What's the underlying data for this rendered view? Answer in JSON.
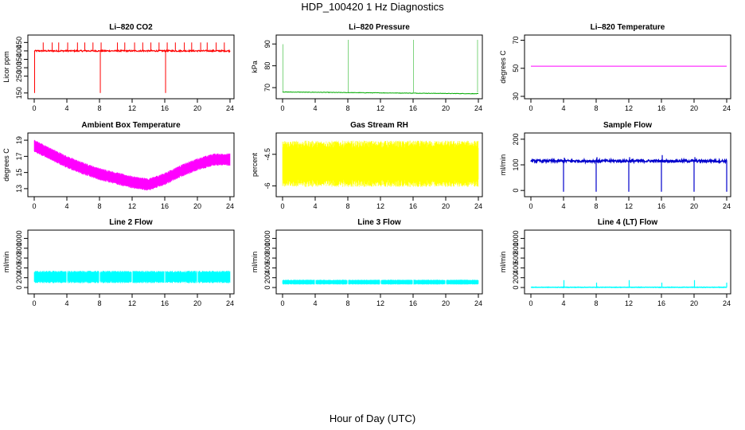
{
  "page": {
    "title": "HDP_100420  1 Hz Diagnostics",
    "xlabel": "Hour of Day (UTC)"
  },
  "chart_data": [
    {
      "type": "line",
      "title": "Li–820 CO2",
      "ylabel": "Licor ppm",
      "xlim": [
        0,
        24
      ],
      "ylim": [
        130,
        480
      ],
      "yticks": [
        150,
        250,
        300,
        350,
        400,
        450
      ],
      "xticks": [
        0,
        4,
        8,
        12,
        16,
        20,
        24
      ],
      "color": "#ff0000",
      "series": [
        {
          "pattern": "co2",
          "base": 400,
          "noise": 4,
          "spikes_up": [
            1.1,
            2.2,
            3,
            4.1,
            5.3,
            6.2,
            7.2,
            8.2,
            10.2,
            11.1,
            12.3,
            13.3,
            14.3,
            15.3,
            16.3,
            17.3,
            18.4,
            19.3,
            20.4,
            21.2,
            22.3,
            23.3
          ],
          "spike_up_to": 450,
          "spikes_down": [
            {
              "x": 0.05,
              "y": 150
            },
            {
              "x": 8.1,
              "y": 150
            },
            {
              "x": 16.1,
              "y": 150
            }
          ]
        }
      ]
    },
    {
      "type": "line",
      "title": "Li–820 Pressure",
      "ylabel": "kPa",
      "xlim": [
        0,
        24
      ],
      "ylim": [
        66,
        93
      ],
      "yticks": [
        70,
        80,
        90
      ],
      "xticks": [
        0,
        4,
        8,
        12,
        16,
        20,
        24
      ],
      "color": "#00aa00",
      "series": [
        {
          "pattern": "pressure",
          "start": 68,
          "end": 67.2,
          "spikes": [
            {
              "x": 0.05,
              "y": 90
            },
            {
              "x": 8.05,
              "y": 92
            },
            {
              "x": 16.05,
              "y": 92
            },
            {
              "x": 23.9,
              "y": 92
            }
          ]
        }
      ]
    },
    {
      "type": "line",
      "title": "Li–820 Temperature",
      "ylabel": "degrees C",
      "xlim": [
        0,
        24
      ],
      "ylim": [
        30,
        72
      ],
      "yticks": [
        30,
        50,
        70
      ],
      "xticks": [
        0,
        4,
        8,
        12,
        16,
        20,
        24
      ],
      "color": "#ff00ff",
      "series": [
        {
          "pattern": "flat",
          "value": 51.5
        }
      ]
    },
    {
      "type": "area",
      "title": "Ambient Box Temperature",
      "ylabel": "degrees C",
      "xlim": [
        0,
        24
      ],
      "ylim": [
        12.3,
        19.6
      ],
      "yticks": [
        13,
        15,
        17,
        19
      ],
      "xticks": [
        0,
        4,
        8,
        12,
        16,
        20,
        24
      ],
      "color": "#ff00ff",
      "series": [
        {
          "pattern": "band",
          "centre": [
            [
              0,
              18.3
            ],
            [
              2,
              17.3
            ],
            [
              4,
              16.3
            ],
            [
              6,
              15.5
            ],
            [
              8,
              14.8
            ],
            [
              10,
              14.3
            ],
            [
              12,
              13.8
            ],
            [
              14,
              13.5
            ],
            [
              16,
              14.2
            ],
            [
              18,
              15.2
            ],
            [
              20,
              16
            ],
            [
              22,
              16.6
            ],
            [
              24,
              16.6
            ]
          ],
          "halfwidth": 0.7
        }
      ]
    },
    {
      "type": "area",
      "title": "Gas Stream RH",
      "ylabel": "percent",
      "xlim": [
        0,
        24
      ],
      "ylim": [
        -6.4,
        -3.6
      ],
      "yticks": [
        -6.0,
        -4.5
      ],
      "xticks": [
        0,
        4,
        8,
        12,
        16,
        20,
        24
      ],
      "color": "#ffff00",
      "series": [
        {
          "pattern": "band",
          "centre": [
            [
              0,
              -4.95
            ],
            [
              24,
              -4.95
            ]
          ],
          "halfwidth": 1.0
        }
      ]
    },
    {
      "type": "line",
      "title": "Sample Flow",
      "ylabel": "ml/min",
      "xlim": [
        0,
        24
      ],
      "ylim": [
        -15,
        215
      ],
      "yticks": [
        0,
        100,
        200
      ],
      "xticks": [
        0,
        4,
        8,
        12,
        16,
        20,
        24
      ],
      "color": "#0000cc",
      "series": [
        {
          "pattern": "flow",
          "base": 115,
          "noise": 5,
          "spikes_up": [
            {
              "x": 4.1,
              "y": 128
            },
            {
              "x": 8.1,
              "y": 130
            },
            {
              "x": 12.1,
              "y": 130
            },
            {
              "x": 16.1,
              "y": 138
            },
            {
              "x": 20.1,
              "y": 130
            }
          ],
          "spikes_down": [
            {
              "x": 4,
              "y": -5
            },
            {
              "x": 8,
              "y": -5
            },
            {
              "x": 12,
              "y": -5
            },
            {
              "x": 16,
              "y": -5
            },
            {
              "x": 20,
              "y": -5
            },
            {
              "x": 24,
              "y": -5
            }
          ]
        }
      ]
    },
    {
      "type": "area",
      "title": "Line 2 Flow",
      "ylabel": "ml/min",
      "xlim": [
        0,
        24
      ],
      "ylim": [
        -80,
        1120
      ],
      "yticks": [
        0,
        200,
        400,
        600,
        800,
        1000
      ],
      "xticks": [
        0,
        4,
        8,
        12,
        16,
        20,
        24
      ],
      "color": "#00ffff",
      "series": [
        {
          "pattern": "band",
          "centre": [
            [
              0,
              215
            ],
            [
              24,
              215
            ]
          ],
          "halfwidth": 115,
          "gaps": [
            4,
            8,
            12,
            16,
            20
          ]
        }
      ]
    },
    {
      "type": "area",
      "title": "Line 3 Flow",
      "ylabel": "ml/min",
      "xlim": [
        0,
        24
      ],
      "ylim": [
        -80,
        1120
      ],
      "yticks": [
        0,
        200,
        400,
        600,
        800,
        1000
      ],
      "xticks": [
        0,
        4,
        8,
        12,
        16,
        20,
        24
      ],
      "color": "#00ffff",
      "series": [
        {
          "pattern": "band",
          "centre": [
            [
              0,
              110
            ],
            [
              24,
              110
            ]
          ],
          "halfwidth": 45,
          "gaps": [
            4,
            8,
            12,
            16,
            20
          ]
        }
      ]
    },
    {
      "type": "line",
      "title": "Line 4 (LT) Flow",
      "ylabel": "ml/min",
      "xlim": [
        0,
        24
      ],
      "ylim": [
        -80,
        1120
      ],
      "yticks": [
        0,
        200,
        400,
        600,
        800,
        1000
      ],
      "xticks": [
        0,
        4,
        8,
        12,
        16,
        20,
        24
      ],
      "color": "#00ffff",
      "series": [
        {
          "pattern": "flow",
          "base": 5,
          "noise": 4,
          "spikes_up": [
            {
              "x": 4.05,
              "y": 150
            },
            {
              "x": 8.05,
              "y": 100
            },
            {
              "x": 12.05,
              "y": 150
            },
            {
              "x": 16.05,
              "y": 100
            },
            {
              "x": 20.05,
              "y": 150
            },
            {
              "x": 24,
              "y": 100
            }
          ],
          "spikes_down": []
        }
      ]
    }
  ]
}
